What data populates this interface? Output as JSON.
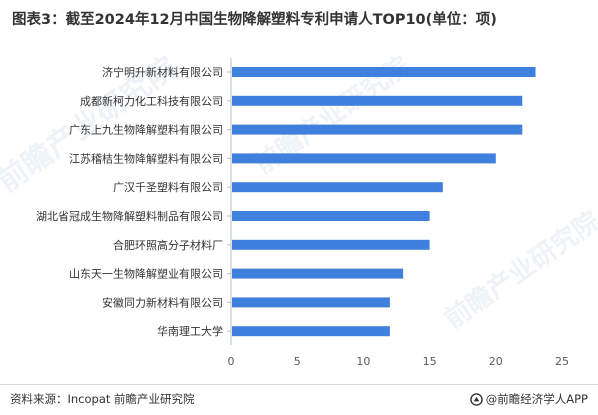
{
  "title": "图表3：截至2024年12月中国生物降解塑料专利申请人TOP10(单位：项)",
  "footer": {
    "source": "资料来源：Incopat 前瞻产业研究院",
    "brand": "@前瞻经济学人APP"
  },
  "watermarks": [
    "前瞻产业研究院",
    "前瞻产业研究院",
    "前瞻产业研究院"
  ],
  "colors": {
    "bar": "#3f7fdd",
    "axis": "#bfbfbf",
    "text": "#333333"
  },
  "chart_data": {
    "type": "bar",
    "orientation": "horizontal",
    "categories": [
      "济宁明升新材料有限公司",
      "成都新柯力化工科技有限公司",
      "广东上九生物降解塑料有限公司",
      "江苏稽桔生物降解塑料有限公司",
      "广汉千圣塑料有限公司",
      "湖北省冠成生物降解塑料制品有限公司",
      "合肥环照高分子材料厂",
      "山东天一生物降解塑业有限公司",
      "安徽同力新材料有限公司",
      "华南理工大学"
    ],
    "values": [
      23,
      22,
      22,
      20,
      16,
      15,
      15,
      13,
      12,
      12
    ],
    "xlim": [
      0,
      25
    ],
    "xticks": [
      "0",
      "5",
      "10",
      "15",
      "20",
      "25"
    ],
    "grid": false
  }
}
